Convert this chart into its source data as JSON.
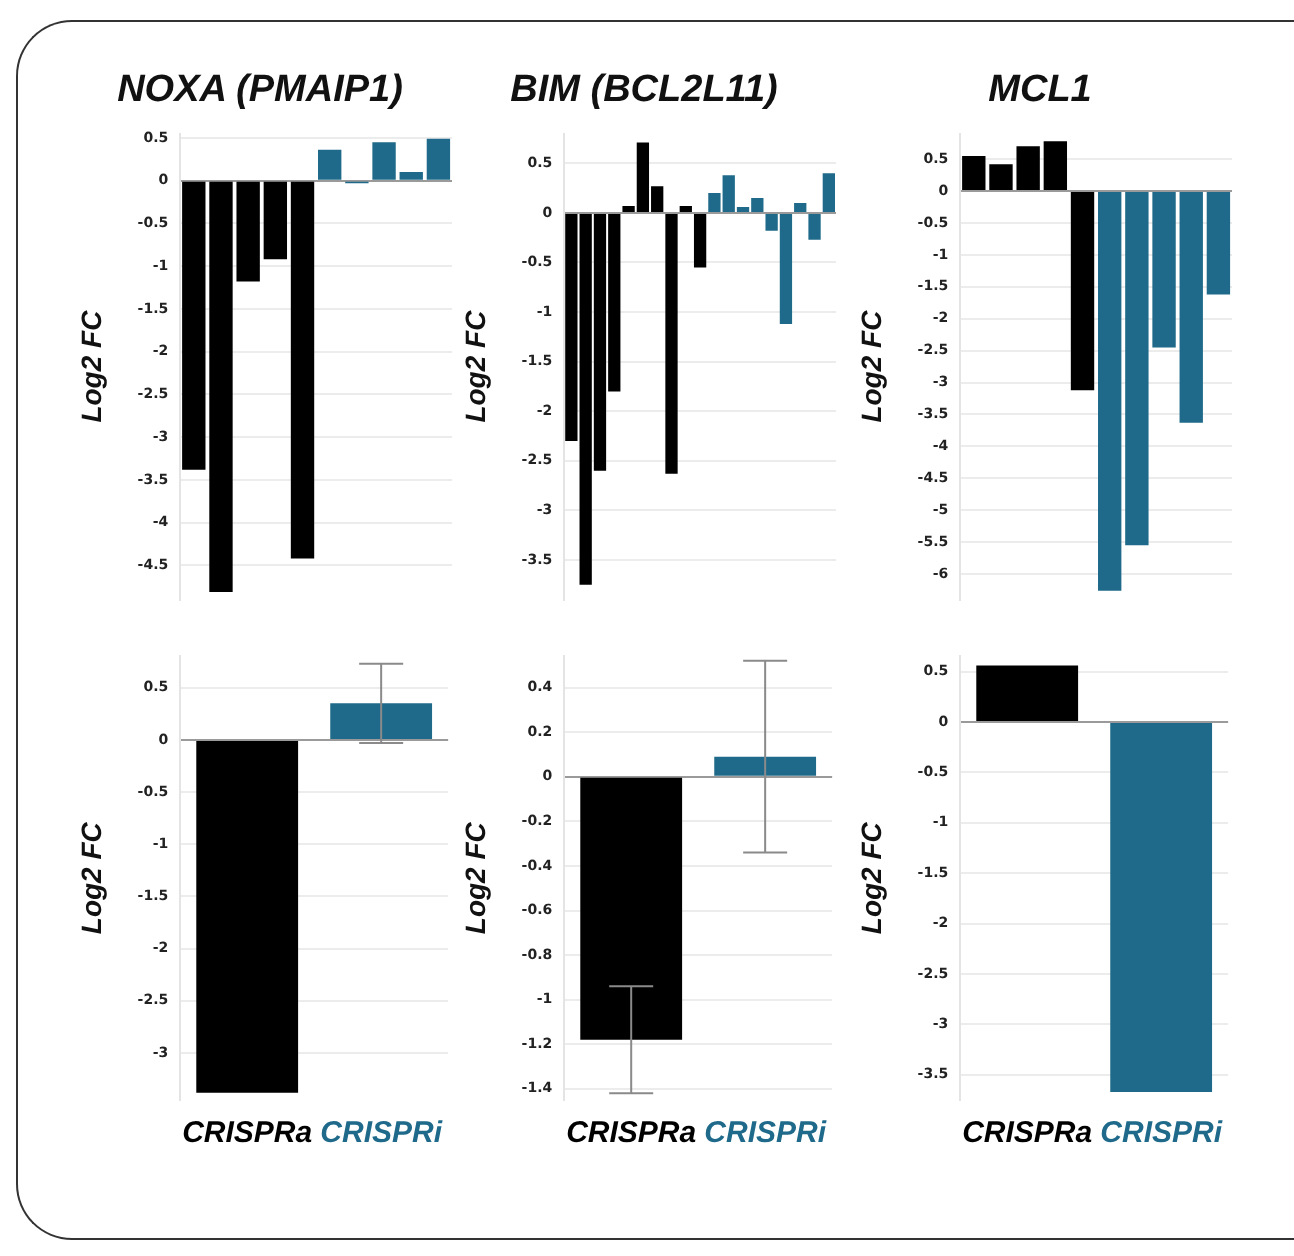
{
  "chart_data": [
    {
      "type": "bar",
      "title": "NOXA (PMAIP1)",
      "ylabel": "Log2 FC",
      "categories": [
        null,
        null,
        null,
        null,
        null,
        null,
        null,
        null,
        null,
        null
      ],
      "values": [
        -3.38,
        -4.81,
        -1.18,
        -0.92,
        -4.42,
        0.36,
        -0.03,
        0.45,
        0.1,
        0.49
      ],
      "colors": [
        "#000000",
        "#000000",
        "#000000",
        "#000000",
        "#000000",
        "#1f6a8a",
        "#1f6a8a",
        "#1f6a8a",
        "#1f6a8a",
        "#1f6a8a"
      ],
      "ylim": [
        -4.9,
        0.55
      ],
      "yticks": [
        0.5,
        0,
        -0.5,
        -1,
        -1.5,
        -2,
        -2.5,
        -3,
        -3.5,
        -4,
        -4.5
      ],
      "grid": "y",
      "legend": false,
      "tick_labels": "y"
    },
    {
      "type": "bar",
      "title": "BIM (BCL2L11)",
      "ylabel": "Log2 FC",
      "categories": [
        null,
        null,
        null,
        null,
        null,
        null,
        null,
        null,
        null,
        null,
        null,
        null,
        null,
        null,
        null,
        null,
        null,
        null,
        null
      ],
      "values": [
        -2.3,
        -3.75,
        -2.6,
        -1.8,
        0.07,
        0.71,
        0.27,
        -2.63,
        0.07,
        -0.55,
        0.2,
        0.38,
        0.06,
        0.15,
        -0.18,
        -1.12,
        0.1,
        -0.27,
        0.4
      ],
      "colors": [
        "#000000",
        "#000000",
        "#000000",
        "#000000",
        "#000000",
        "#000000",
        "#000000",
        "#000000",
        "#000000",
        "#000000",
        "#1f6a8a",
        "#1f6a8a",
        "#1f6a8a",
        "#1f6a8a",
        "#1f6a8a",
        "#1f6a8a",
        "#1f6a8a",
        "#1f6a8a",
        "#1f6a8a"
      ],
      "ylim": [
        -3.9,
        0.8
      ],
      "yticks": [
        0.5,
        0,
        -0.5,
        -1,
        -1.5,
        -2,
        -2.5,
        -3,
        -3.5
      ],
      "grid": "y",
      "legend": false,
      "tick_labels": "y"
    },
    {
      "type": "bar",
      "title": "MCL1",
      "ylabel": "Log2 FC",
      "categories": [
        null,
        null,
        null,
        null,
        null,
        null,
        null,
        null,
        null,
        null
      ],
      "values": [
        0.55,
        0.42,
        0.7,
        0.78,
        -3.12,
        -6.26,
        -5.55,
        -2.45,
        -3.63,
        -1.62
      ],
      "colors": [
        "#000000",
        "#000000",
        "#000000",
        "#000000",
        "#000000",
        "#1f6a8a",
        "#1f6a8a",
        "#1f6a8a",
        "#1f6a8a",
        "#1f6a8a"
      ],
      "ylim": [
        -6.4,
        0.9
      ],
      "yticks": [
        0.5,
        0,
        -0.5,
        -1,
        -1.5,
        -2,
        -2.5,
        -3,
        -3.5,
        -4,
        -4.5,
        -5,
        -5.5,
        -6
      ],
      "grid": "y",
      "legend": false,
      "tick_labels": "y"
    },
    {
      "type": "bar",
      "ylabel": "Log2 FC",
      "categories": [
        "CRISPRa",
        "CRISPRi"
      ],
      "values": [
        -3.38,
        0.35
      ],
      "errors": [
        null,
        0.38
      ],
      "colors": [
        "#000000",
        "#1f6a8a"
      ],
      "ylim": [
        -3.45,
        0.8
      ],
      "yticks": [
        0.5,
        0,
        -0.5,
        -1,
        -1.5,
        -2,
        -2.5,
        -3
      ],
      "grid": "y",
      "legend": false
    },
    {
      "type": "bar",
      "ylabel": "Log2 FC",
      "categories": [
        "CRISPRa",
        "CRISPRi"
      ],
      "values": [
        -1.18,
        0.09
      ],
      "errors": [
        0.24,
        0.43
      ],
      "colors": [
        "#000000",
        "#1f6a8a"
      ],
      "ylim": [
        -1.45,
        0.54
      ],
      "yticks": [
        0.4,
        0.2,
        0,
        -0.2,
        -0.4,
        -0.6,
        -0.8,
        -1,
        -1.2,
        -1.4
      ],
      "grid": "y",
      "legend": false
    },
    {
      "type": "bar",
      "ylabel": "Log2 FC",
      "categories": [
        "CRISPRa",
        "CRISPRi"
      ],
      "values": [
        0.56,
        -3.67
      ],
      "colors": [
        "#000000",
        "#1f6a8a"
      ],
      "ylim": [
        -3.75,
        0.65
      ],
      "yticks": [
        0.5,
        0,
        -0.5,
        -1,
        -1.5,
        -2,
        -2.5,
        -3,
        -3.5
      ],
      "grid": "y",
      "legend": false
    }
  ]
}
